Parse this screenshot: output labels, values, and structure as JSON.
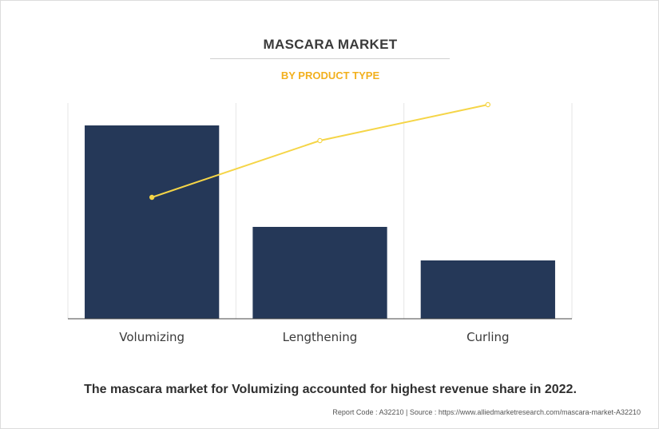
{
  "header": {
    "title": "MASCARA MARKET",
    "subtitle": "BY PRODUCT TYPE"
  },
  "chart_data": {
    "type": "bar",
    "categories": [
      "Volumizing",
      "Lengthening",
      "Curling"
    ],
    "series": [
      {
        "type": "bar",
        "values": [
          242,
          115,
          73
        ]
      },
      {
        "type": "line",
        "values": [
          152,
          223,
          268
        ]
      }
    ],
    "ylim": [
      0,
      270
    ],
    "grid": true,
    "legend": "none",
    "colors": {
      "bar": "#253858",
      "line": "#f5d547",
      "grid": "#e6e6e6",
      "axis": "#444444"
    }
  },
  "caption": "The mascara market for Volumizing accounted for highest revenue share in 2022.",
  "footer": {
    "report_code": "Report Code : A32210",
    "separator": "|",
    "source": "Source : https://www.alliedmarketresearch.com/mascara-market-A32210"
  }
}
